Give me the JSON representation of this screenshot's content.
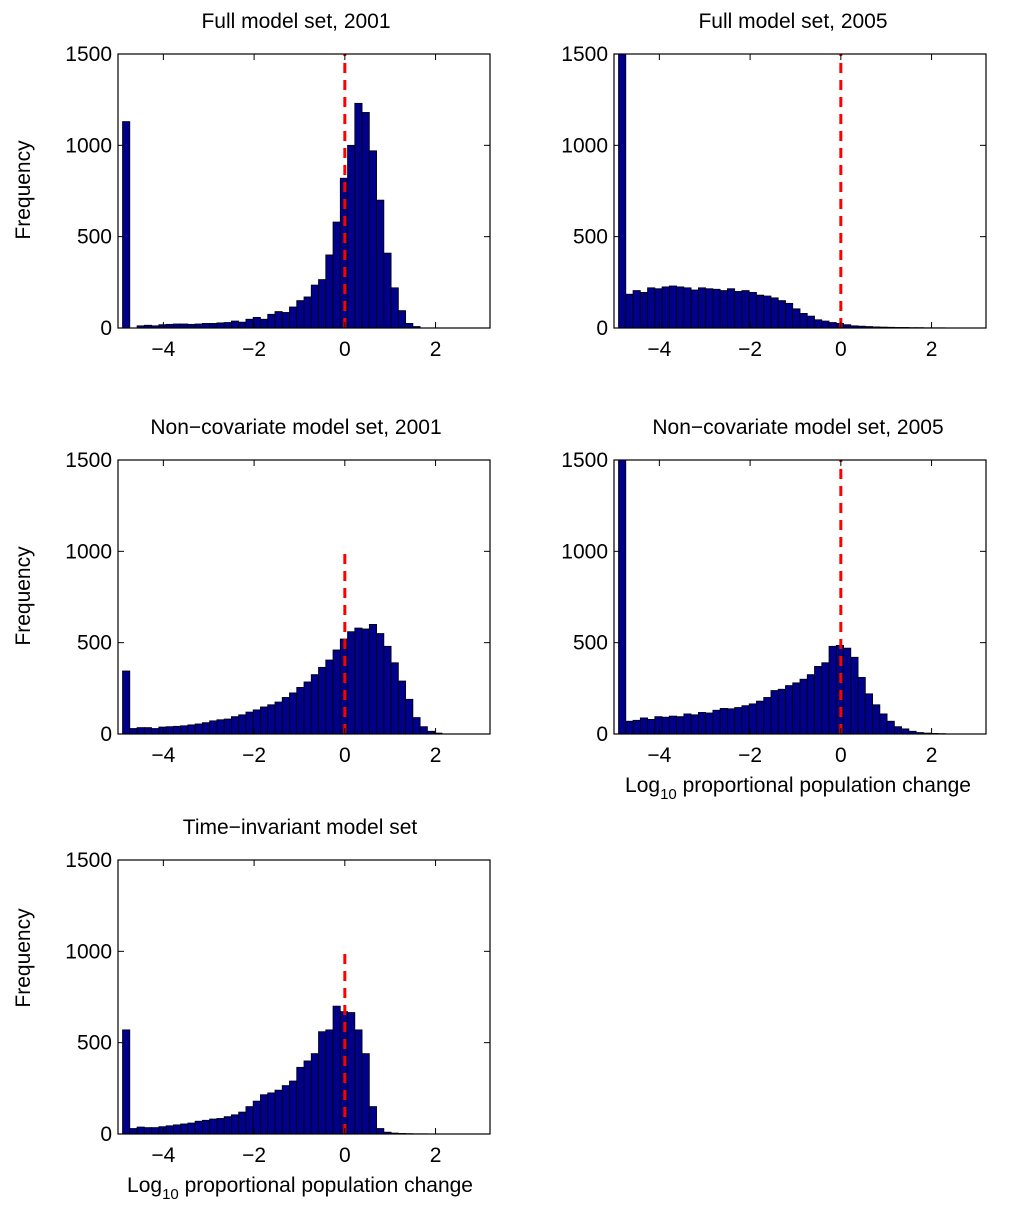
{
  "chart_data": [
    {
      "type": "bar",
      "title": "Full model set, 2001",
      "xlabel": "",
      "ylabel": "Frequency",
      "xlim": [
        -5,
        3.2
      ],
      "ylim": [
        0,
        1500
      ],
      "xticks": [
        -4,
        -2,
        0,
        2
      ],
      "yticks": [
        0,
        500,
        1000,
        1500
      ],
      "xtick_labels": [
        "−4",
        "−2",
        "0",
        "2"
      ],
      "ytick_labels": [
        "0",
        "500",
        "1000",
        "1500"
      ],
      "reference_line": {
        "x": 0,
        "ymax": 1500,
        "color": "#ff0000",
        "style": "dashed"
      },
      "bin_start": -4.9,
      "bin_width": 0.16,
      "values": [
        1130,
        0,
        12,
        15,
        12,
        18,
        20,
        22,
        22,
        20,
        22,
        25,
        25,
        28,
        30,
        38,
        32,
        48,
        58,
        48,
        75,
        90,
        85,
        115,
        150,
        170,
        235,
        265,
        400,
        580,
        820,
        1000,
        1230,
        1180,
        970,
        700,
        410,
        220,
        95,
        25,
        8,
        0,
        0,
        0,
        0,
        0,
        0,
        0,
        0,
        0,
        0
      ]
    },
    {
      "type": "bar",
      "title": "Full model set, 2005",
      "xlabel": "",
      "ylabel": "",
      "xlim": [
        -5,
        3.2
      ],
      "ylim": [
        0,
        1500
      ],
      "xticks": [
        -4,
        -2,
        0,
        2
      ],
      "yticks": [
        0,
        500,
        1000,
        1500
      ],
      "xtick_labels": [
        "−4",
        "−2",
        "0",
        "2"
      ],
      "ytick_labels": [
        "0",
        "500",
        "1000",
        "1500"
      ],
      "reference_line": {
        "x": 0,
        "ymax": 1500,
        "color": "#ff0000",
        "style": "dashed"
      },
      "bin_start": -4.9,
      "bin_width": 0.16,
      "values": [
        1500,
        185,
        205,
        195,
        220,
        215,
        225,
        230,
        225,
        220,
        208,
        220,
        215,
        212,
        205,
        215,
        200,
        205,
        195,
        180,
        175,
        165,
        150,
        135,
        105,
        80,
        65,
        45,
        38,
        30,
        25,
        18,
        12,
        10,
        8,
        6,
        5,
        4,
        3,
        3,
        2,
        2,
        1,
        1,
        1,
        0,
        0,
        0,
        0,
        0,
        0
      ]
    },
    {
      "type": "bar",
      "title": "Non−covariate model set, 2001",
      "xlabel": "",
      "ylabel": "Frequency",
      "xlim": [
        -5,
        3.2
      ],
      "ylim": [
        0,
        1500
      ],
      "xticks": [
        -4,
        -2,
        0,
        2
      ],
      "yticks": [
        0,
        500,
        1000,
        1500
      ],
      "xtick_labels": [
        "−4",
        "−2",
        "0",
        "2"
      ],
      "ytick_labels": [
        "0",
        "500",
        "1000",
        "1500"
      ],
      "reference_line": {
        "x": 0,
        "ymax": 1000,
        "color": "#ff0000",
        "style": "dashed"
      },
      "bin_start": -4.9,
      "bin_width": 0.16,
      "values": [
        345,
        30,
        35,
        35,
        30,
        38,
        40,
        42,
        45,
        50,
        55,
        62,
        72,
        78,
        82,
        95,
        105,
        120,
        132,
        148,
        160,
        175,
        200,
        225,
        255,
        285,
        325,
        365,
        405,
        460,
        520,
        560,
        580,
        575,
        600,
        550,
        480,
        390,
        290,
        190,
        90,
        40,
        15,
        5,
        0,
        0,
        0,
        0,
        0,
        0,
        0
      ]
    },
    {
      "type": "bar",
      "title": "Non−covariate model set, 2005",
      "xlabel": "Log10 proportional population change",
      "ylabel": "",
      "xlim": [
        -5,
        3.2
      ],
      "ylim": [
        0,
        1500
      ],
      "xticks": [
        -4,
        -2,
        0,
        2
      ],
      "yticks": [
        0,
        500,
        1000,
        1500
      ],
      "xtick_labels": [
        "−4",
        "−2",
        "0",
        "2"
      ],
      "ytick_labels": [
        "0",
        "500",
        "1000",
        "1500"
      ],
      "reference_line": {
        "x": 0,
        "ymax": 1500,
        "color": "#ff0000",
        "style": "dashed"
      },
      "bin_start": -4.9,
      "bin_width": 0.16,
      "values": [
        1500,
        70,
        75,
        88,
        80,
        95,
        92,
        98,
        95,
        110,
        105,
        118,
        115,
        130,
        140,
        138,
        145,
        155,
        165,
        180,
        200,
        238,
        245,
        265,
        280,
        300,
        325,
        370,
        390,
        480,
        485,
        470,
        420,
        310,
        220,
        160,
        110,
        70,
        40,
        28,
        15,
        8,
        5,
        3,
        2,
        0,
        0,
        0,
        0,
        0,
        0
      ]
    },
    {
      "type": "bar",
      "title": "Time−invariant model set",
      "xlabel": "Log10 proportional population change",
      "ylabel": "Frequency",
      "xlim": [
        -5,
        3.2
      ],
      "ylim": [
        0,
        1500
      ],
      "xticks": [
        -4,
        -2,
        0,
        2
      ],
      "yticks": [
        0,
        500,
        1000,
        1500
      ],
      "xtick_labels": [
        "−4",
        "−2",
        "0",
        "2"
      ],
      "ytick_labels": [
        "0",
        "500",
        "1000",
        "1500"
      ],
      "reference_line": {
        "x": 0,
        "ymax": 1000,
        "color": "#ff0000",
        "style": "dashed"
      },
      "bin_start": -4.9,
      "bin_width": 0.16,
      "values": [
        570,
        30,
        38,
        35,
        35,
        40,
        45,
        50,
        55,
        60,
        70,
        75,
        82,
        85,
        95,
        105,
        120,
        150,
        180,
        215,
        225,
        240,
        265,
        290,
        365,
        400,
        440,
        560,
        570,
        700,
        670,
        665,
        570,
        440,
        150,
        30,
        10,
        5,
        3,
        2,
        1,
        1,
        0,
        0,
        0,
        0,
        0,
        0,
        0,
        0,
        0
      ]
    }
  ],
  "colors": {
    "bar_fill": "#00008b",
    "bar_edge": "#000000",
    "reference_line": "#ff0000"
  }
}
